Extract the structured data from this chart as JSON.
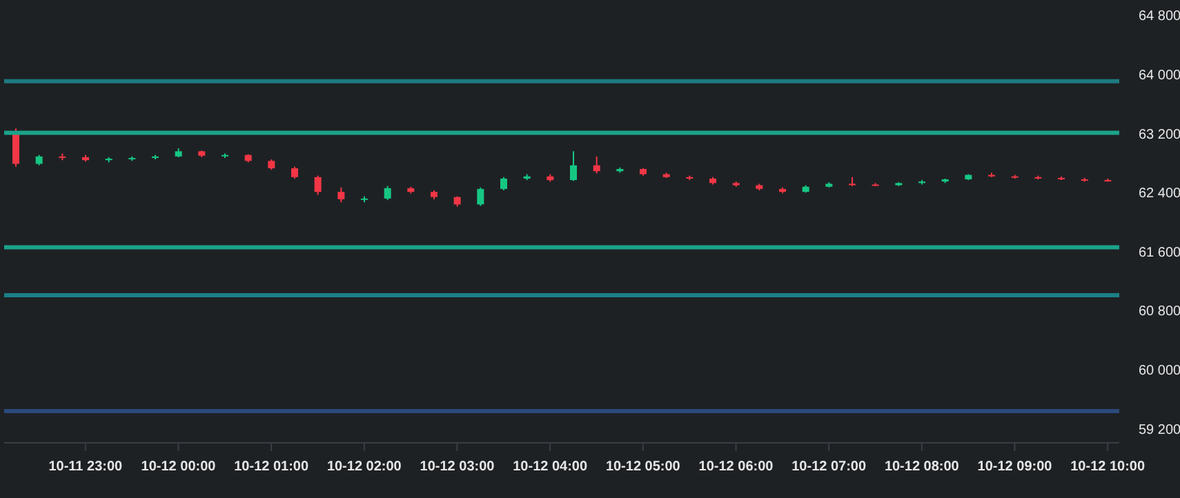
{
  "chart_data": {
    "type": "candlestick",
    "categories": [
      null,
      null,
      null,
      "10-11 23:00",
      null,
      null,
      null,
      "10-12 00:00",
      null,
      null,
      null,
      "10-12 01:00",
      null,
      null,
      null,
      "10-12 02:00",
      null,
      null,
      null,
      "10-12 03:00",
      null,
      null,
      null,
      "10-12 04:00",
      null,
      null,
      null,
      "10-12 05:00",
      null,
      null,
      null,
      "10-12 06:00",
      null,
      null,
      null,
      "10-12 07:00",
      null,
      null,
      null,
      "10-12 08:00",
      null,
      null,
      null,
      "10-12 09:00",
      null,
      null,
      null,
      "10-12 10:00"
    ],
    "ohlc": [
      [
        63180,
        63260,
        62740,
        62780
      ],
      [
        62780,
        62900,
        62760,
        62880
      ],
      [
        62880,
        62920,
        62830,
        62870
      ],
      [
        62870,
        62900,
        62810,
        62830
      ],
      [
        62830,
        62870,
        62800,
        62850
      ],
      [
        62850,
        62880,
        62820,
        62860
      ],
      [
        62860,
        62900,
        62840,
        62880
      ],
      [
        62880,
        62990,
        62870,
        62950
      ],
      [
        62950,
        62960,
        62870,
        62890
      ],
      [
        62890,
        62920,
        62860,
        62900
      ],
      [
        62900,
        62910,
        62800,
        62820
      ],
      [
        62820,
        62840,
        62700,
        62720
      ],
      [
        62720,
        62740,
        62580,
        62600
      ],
      [
        62600,
        62620,
        62360,
        62400
      ],
      [
        62400,
        62460,
        62260,
        62300
      ],
      [
        62300,
        62340,
        62260,
        62310
      ],
      [
        62310,
        62480,
        62290,
        62450
      ],
      [
        62450,
        62470,
        62380,
        62400
      ],
      [
        62400,
        62420,
        62300,
        62330
      ],
      [
        62330,
        62340,
        62200,
        62230
      ],
      [
        62230,
        62460,
        62210,
        62440
      ],
      [
        62440,
        62600,
        62420,
        62580
      ],
      [
        62580,
        62640,
        62560,
        62610
      ],
      [
        62610,
        62640,
        62540,
        62560
      ],
      [
        62560,
        62950,
        62550,
        62760
      ],
      [
        62760,
        62880,
        62650,
        62680
      ],
      [
        62680,
        62730,
        62660,
        62710
      ],
      [
        62710,
        62720,
        62620,
        62640
      ],
      [
        62640,
        62660,
        62590,
        62600
      ],
      [
        62600,
        62620,
        62560,
        62580
      ],
      [
        62580,
        62600,
        62500,
        62520
      ],
      [
        62520,
        62540,
        62470,
        62490
      ],
      [
        62490,
        62510,
        62420,
        62440
      ],
      [
        62440,
        62460,
        62380,
        62400
      ],
      [
        62400,
        62490,
        62390,
        62470
      ],
      [
        62470,
        62530,
        62460,
        62510
      ],
      [
        62510,
        62600,
        62480,
        62500
      ],
      [
        62500,
        62520,
        62480,
        62490
      ],
      [
        62490,
        62530,
        62480,
        62520
      ],
      [
        62520,
        62560,
        62500,
        62540
      ],
      [
        62540,
        62580,
        62520,
        62570
      ],
      [
        62570,
        62640,
        62560,
        62630
      ],
      [
        62630,
        62660,
        62600,
        62610
      ],
      [
        62610,
        62630,
        62580,
        62600
      ],
      [
        62600,
        62620,
        62570,
        62590
      ],
      [
        62590,
        62610,
        62560,
        62570
      ],
      [
        62570,
        62590,
        62540,
        62560
      ],
      [
        62560,
        62580,
        62540,
        62550
      ]
    ],
    "colors": [
      "#f23645",
      "#16c784",
      "#f23645",
      "#f23645",
      "#16c784",
      "#16c784",
      "#16c784",
      "#16c784",
      "#f23645",
      "#16c784",
      "#f23645",
      "#f23645",
      "#f23645",
      "#f23645",
      "#f23645",
      "#16c784",
      "#16c784",
      "#f23645",
      "#f23645",
      "#f23645",
      "#16c784",
      "#16c784",
      "#16c784",
      "#f23645",
      "#16c784",
      "#f23645",
      "#16c784",
      "#f23645",
      "#f23645",
      "#f23645",
      "#f23645",
      "#f23645",
      "#f23645",
      "#f23645",
      "#16c784",
      "#16c784",
      "#f23645",
      "#f23645",
      "#16c784",
      "#16c784",
      "#16c784",
      "#16c784",
      "#f23645",
      "#f23645",
      "#f23645",
      "#f23645",
      "#f23645",
      "#f23645"
    ],
    "ylim": [
      59000,
      65000
    ],
    "yticks": [
      {
        "value": 59200,
        "label": "59 200"
      },
      {
        "value": 60000,
        "label": "60 000"
      },
      {
        "value": 60800,
        "label": "60 800"
      },
      {
        "value": 61600,
        "label": "61 600"
      },
      {
        "value": 62400,
        "label": "62 400"
      },
      {
        "value": 63200,
        "label": "63 200"
      },
      {
        "value": 64000,
        "label": "64 000"
      },
      {
        "value": 64800,
        "label": "64 800"
      }
    ],
    "ref_lines": [
      {
        "axis": "y",
        "value": 63900,
        "label": null,
        "color": "#1d7a80"
      },
      {
        "axis": "y",
        "value": 63200,
        "label": null,
        "color": "#1aa38a"
      },
      {
        "axis": "y",
        "value": 61650,
        "label": null,
        "color": "#1aa38a"
      },
      {
        "axis": "y",
        "value": 61000,
        "label": null,
        "color": "#1b8088"
      },
      {
        "axis": "y",
        "value": 59430,
        "label": null,
        "color": "#2a4a7a"
      }
    ],
    "grid": false
  }
}
